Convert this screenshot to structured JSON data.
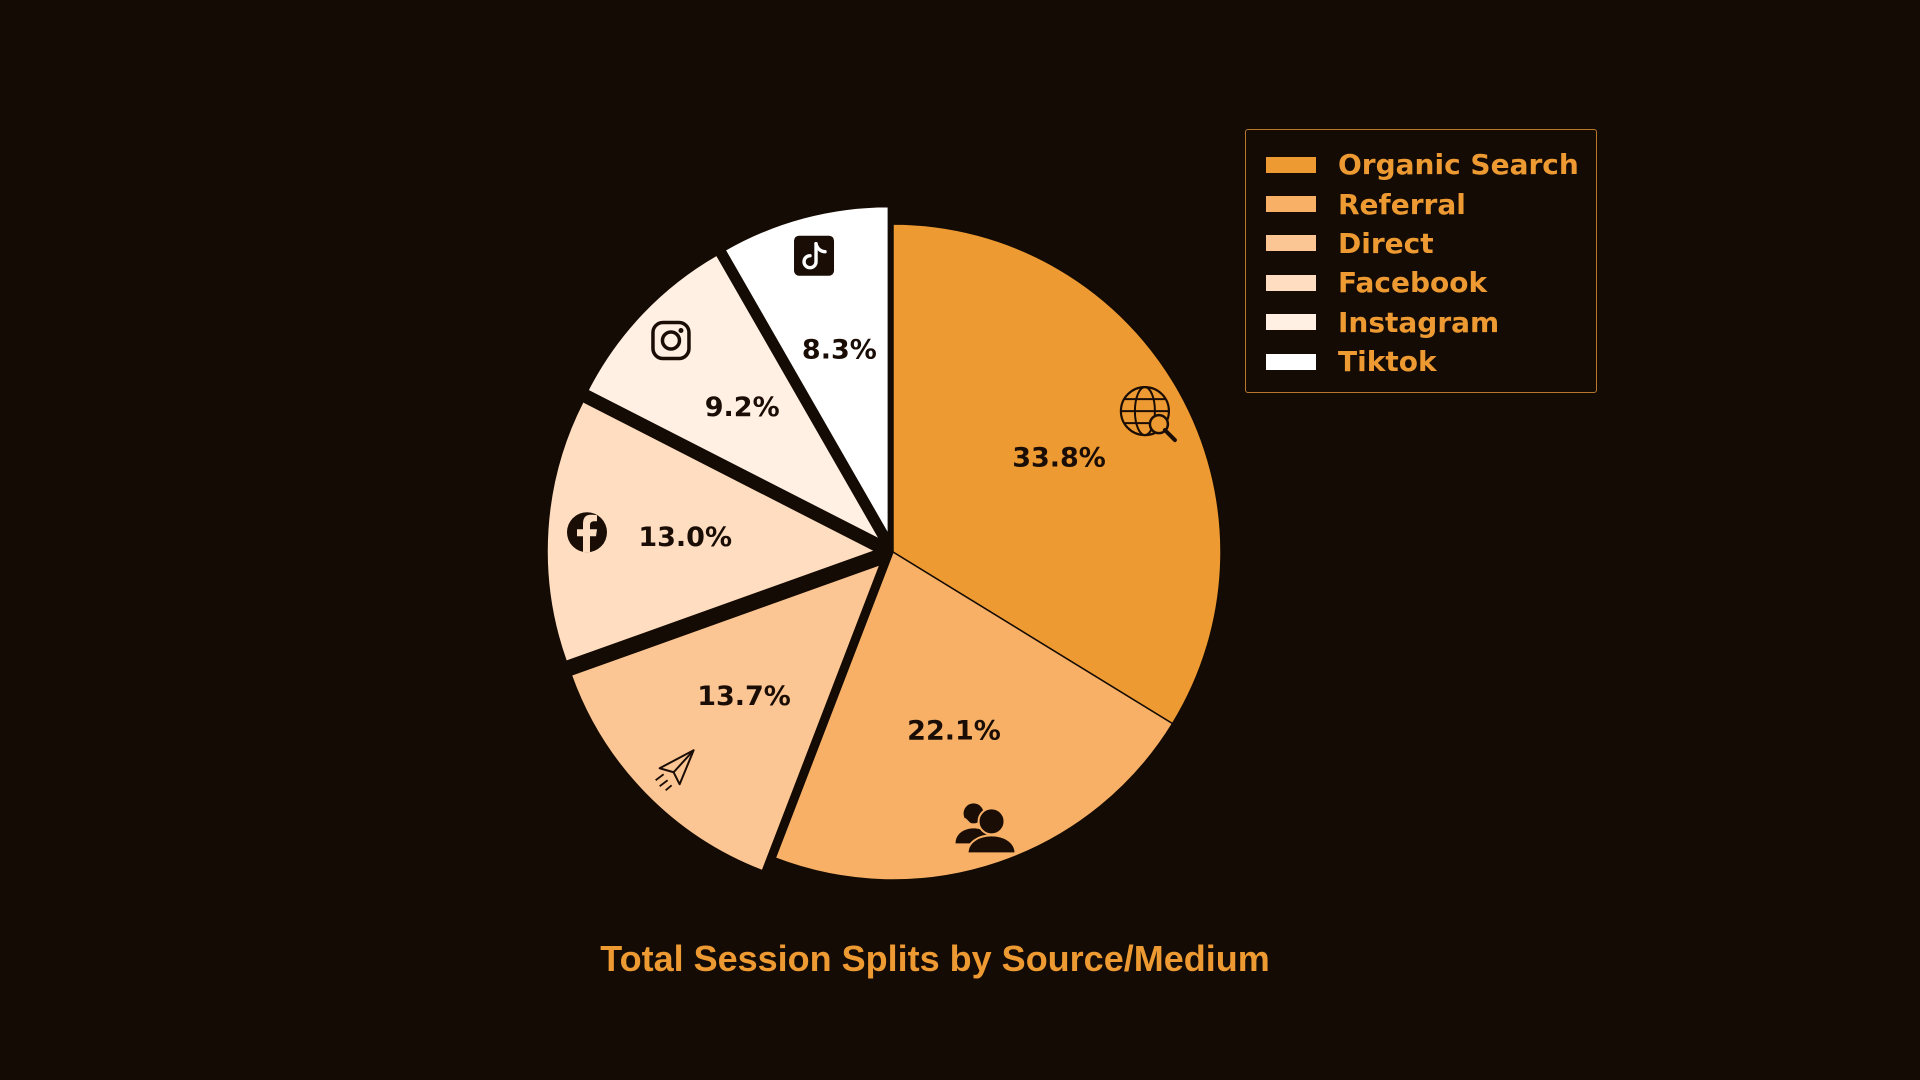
{
  "chart_data": {
    "type": "pie",
    "title": "Total Session Splits by Source/Medium",
    "categories": [
      "Organic Search",
      "Referral",
      "Direct",
      "Facebook",
      "Instagram",
      "Tiktok"
    ],
    "values": [
      33.8,
      22.1,
      13.7,
      13.0,
      9.2,
      8.3
    ],
    "value_labels": [
      "33.8%",
      "22.1%",
      "13.7%",
      "13.0%",
      "9.2%",
      "8.3%"
    ],
    "colors": [
      "#ee9a32",
      "#f7b066",
      "#fcc694",
      "#feddc0",
      "#fff0e3",
      "#ffffff"
    ],
    "icons": [
      "globe-search-icon",
      "users-icon",
      "paper-plane-icon",
      "facebook-icon",
      "instagram-icon",
      "tiktok-icon"
    ],
    "exploded_slices": [
      "Direct",
      "Facebook",
      "Instagram",
      "Tiktok"
    ],
    "start": "12 o'clock",
    "direction": "clockwise",
    "legend_position": "top-right"
  },
  "colors": {
    "background": "#140b04",
    "text_accent": "#ee9a32",
    "label_text": "#1a0d05"
  }
}
